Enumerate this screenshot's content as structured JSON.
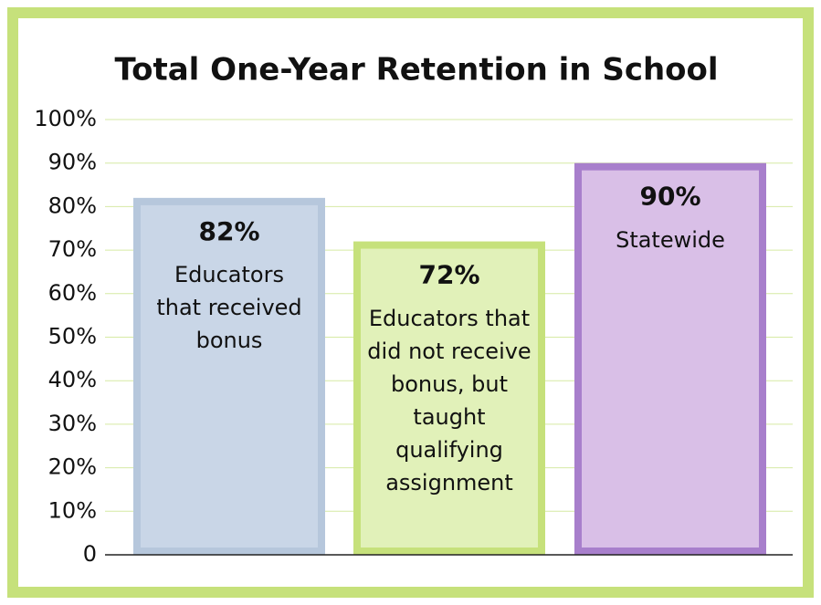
{
  "chart_data": {
    "type": "bar",
    "title": "Total One-Year Retention in School",
    "categories": [
      "Educators that received bonus",
      "Educators that did not receive bonus, but taught qualifying assignment",
      "Statewide"
    ],
    "values": [
      82,
      72,
      90
    ],
    "value_labels": [
      "82%",
      "72%",
      "90%"
    ],
    "colors": [
      "#c9d6e7",
      "#e1f1b9",
      "#d9bfe7"
    ],
    "edge_colors": [
      "#b6c7dc",
      "#c6e17b",
      "#a87fcc"
    ],
    "ylim": [
      0,
      100
    ],
    "yticks": [
      0,
      {
        "value": 10,
        "label": "10%"
      },
      {
        "value": 20,
        "label": "20%"
      },
      {
        "value": 30,
        "label": "30%"
      },
      {
        "value": 40,
        "label": "40%"
      },
      {
        "value": 50,
        "label": "50%"
      },
      {
        "value": 60,
        "label": "60%"
      },
      {
        "value": 70,
        "label": "70%"
      },
      {
        "value": 80,
        "label": "80%"
      },
      {
        "value": 90,
        "label": "90%"
      },
      {
        "value": 100,
        "label": "100%"
      }
    ],
    "grid": true
  }
}
